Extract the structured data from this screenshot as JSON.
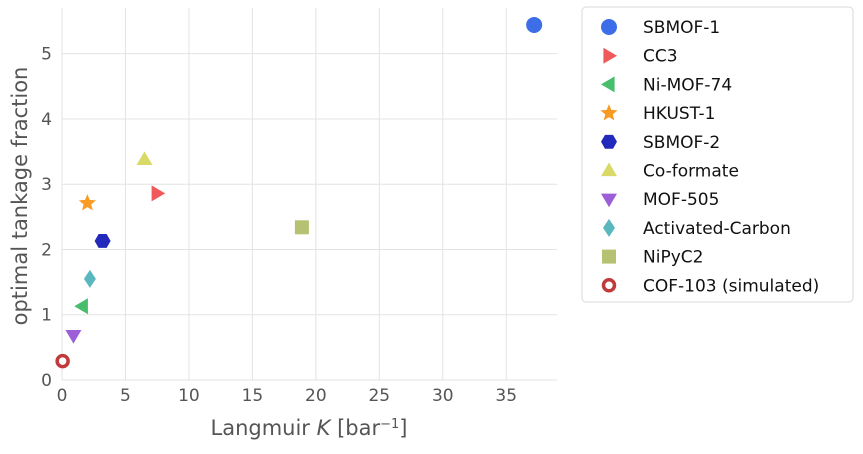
{
  "chart_data": {
    "type": "scatter",
    "title": "",
    "xlabel": "Langmuir K [bar⁻¹]",
    "ylabel": "optimal tankage fraction",
    "xlim": [
      0,
      39
    ],
    "ylim": [
      0,
      5.7
    ],
    "xticks": [
      "0",
      "5",
      "10",
      "15",
      "20",
      "25",
      "30",
      "35"
    ],
    "yticks": [
      "0",
      "1",
      "2",
      "3",
      "4",
      "5"
    ],
    "grid": true,
    "legend_position": "outside-right",
    "series": [
      {
        "name": "SBMOF-1",
        "marker": "circle",
        "color": "#3d6ee8",
        "points": [
          [
            37.2,
            5.44
          ]
        ]
      },
      {
        "name": "CC3",
        "marker": "triangle-right",
        "color": "#f05a5a",
        "points": [
          [
            7.5,
            2.86
          ]
        ]
      },
      {
        "name": "Ni-MOF-74",
        "marker": "triangle-left",
        "color": "#47be6b",
        "points": [
          [
            1.6,
            1.13
          ]
        ]
      },
      {
        "name": "HKUST-1",
        "marker": "star",
        "color": "#f99b22",
        "points": [
          [
            2.0,
            2.71
          ]
        ]
      },
      {
        "name": "SBMOF-2",
        "marker": "hexagon",
        "color": "#2229bb",
        "points": [
          [
            3.2,
            2.13
          ]
        ]
      },
      {
        "name": "Co-formate",
        "marker": "triangle-up",
        "color": "#d8d966",
        "points": [
          [
            6.5,
            3.38
          ]
        ]
      },
      {
        "name": "MOF-505",
        "marker": "triangle-down",
        "color": "#9d5fd8",
        "points": [
          [
            0.9,
            0.68
          ]
        ]
      },
      {
        "name": "Activated-Carbon",
        "marker": "diamond",
        "color": "#5ab7c0",
        "points": [
          [
            2.2,
            1.55
          ]
        ]
      },
      {
        "name": "NiPyC2",
        "marker": "square",
        "color": "#b7c172",
        "points": [
          [
            18.9,
            2.34
          ]
        ]
      },
      {
        "name": "COF-103 (simulated)",
        "marker": "ring",
        "color": "#c0393b",
        "points": [
          [
            0.05,
            0.29
          ]
        ]
      }
    ]
  }
}
